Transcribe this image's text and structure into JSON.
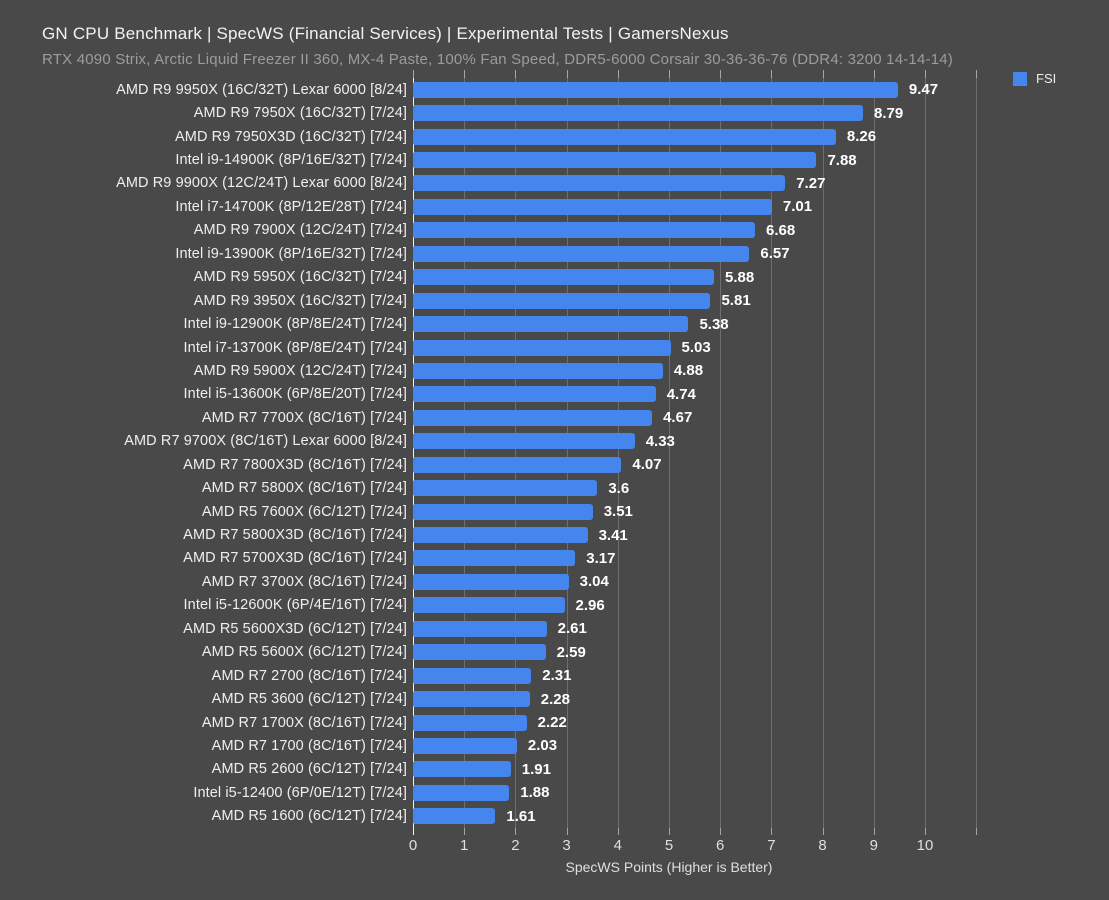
{
  "header": {
    "title": "GN CPU Benchmark | SpecWS (Financial Services) | Experimental Tests | GamersNexus",
    "subtitle": "RTX 4090 Strix, Arctic Liquid Freezer II 360, MX-4 Paste, 100% Fan Speed, DDR5-6000 Corsair 30-36-36-76 (DDR4: 3200 14-14-14)"
  },
  "legend": {
    "label": "FSI"
  },
  "colors": {
    "background": "#494949",
    "bar": "#4486EE",
    "gridline": "#6E6E6E",
    "value_text": "#FFFFFF",
    "label_text": "#EFEFEF",
    "subtitle_text": "#9C9C9C"
  },
  "chart_data": {
    "type": "bar",
    "orientation": "horizontal",
    "title": "GN CPU Benchmark | SpecWS (Financial Services) | Experimental Tests | GamersNexus",
    "subtitle": "RTX 4090 Strix, Arctic Liquid Freezer II 360, MX-4 Paste, 100% Fan Speed, DDR5-6000 Corsair 30-36-36-76 (DDR4: 3200 14-14-14)",
    "xlabel": "SpecWS Points (Higher is Better)",
    "ylabel": "",
    "xlim": [
      0,
      10
    ],
    "x_ticks": [
      0,
      1,
      2,
      3,
      4,
      5,
      6,
      7,
      8,
      9,
      10
    ],
    "grid": true,
    "legend_position": "top-right",
    "series_name": "FSI",
    "categories": [
      "AMD R9 9950X (16C/32T) Lexar 6000 [8/24]",
      "AMD R9 7950X (16C/32T) [7/24]",
      "AMD R9 7950X3D (16C/32T) [7/24]",
      "Intel i9-14900K (8P/16E/32T) [7/24]",
      "AMD R9 9900X (12C/24T) Lexar 6000 [8/24]",
      "Intel i7-14700K (8P/12E/28T) [7/24]",
      "AMD R9 7900X (12C/24T) [7/24]",
      "Intel i9-13900K (8P/16E/32T) [7/24]",
      "AMD R9 5950X (16C/32T) [7/24]",
      "AMD R9 3950X (16C/32T) [7/24]",
      "Intel i9-12900K (8P/8E/24T) [7/24]",
      "Intel i7-13700K (8P/8E/24T) [7/24]",
      "AMD R9 5900X (12C/24T) [7/24]",
      "Intel i5-13600K (6P/8E/20T) [7/24]",
      "AMD R7 7700X (8C/16T) [7/24]",
      "AMD R7 9700X (8C/16T) Lexar 6000 [8/24]",
      "AMD R7 7800X3D (8C/16T) [7/24]",
      "AMD R7 5800X (8C/16T) [7/24]",
      "AMD R5 7600X (6C/12T) [7/24]",
      "AMD R7 5800X3D (8C/16T) [7/24]",
      "AMD R7 5700X3D (8C/16T) [7/24]",
      "AMD R7 3700X (8C/16T) [7/24]",
      "Intel i5-12600K (6P/4E/16T) [7/24]",
      "AMD R5 5600X3D (6C/12T) [7/24]",
      "AMD R5 5600X (6C/12T) [7/24]",
      "AMD R7 2700 (8C/16T) [7/24]",
      "AMD R5 3600 (6C/12T) [7/24]",
      "AMD R7 1700X (8C/16T) [7/24]",
      "AMD R7 1700 (8C/16T) [7/24]",
      "AMD R5 2600 (6C/12T) [7/24]",
      "Intel i5-12400 (6P/0E/12T) [7/24]",
      "AMD R5 1600 (6C/12T) [7/24]"
    ],
    "values": [
      9.47,
      8.79,
      8.26,
      7.88,
      7.27,
      7.01,
      6.68,
      6.57,
      5.88,
      5.81,
      5.38,
      5.03,
      4.88,
      4.74,
      4.67,
      4.33,
      4.07,
      3.6,
      3.51,
      3.41,
      3.17,
      3.04,
      2.96,
      2.61,
      2.59,
      2.31,
      2.28,
      2.22,
      2.03,
      1.91,
      1.88,
      1.61
    ]
  }
}
